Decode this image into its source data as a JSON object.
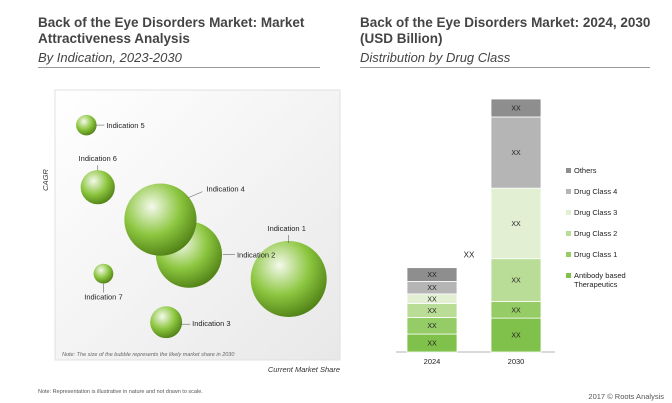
{
  "left": {
    "title": "Back of the Eye Disorders Market: Market Attractiveness Analysis",
    "subtitle": "By Indication, 2023-2030"
  },
  "right": {
    "title": "Back of the Eye Disorders Market: 2024, 2030 (USD Billion)",
    "subtitle": "Distribution by Drug Class"
  },
  "footnote": "Note: Representation is illustrative in nature and not drawn to scale.",
  "copyright": "2017 © Roots Analysis",
  "colors": {
    "bubble_light": "#f4f9ec",
    "bubble_mid": "#8cc63f",
    "bubble_dark": "#4f7f15"
  },
  "chart_data": [
    {
      "type": "scatter",
      "title": "",
      "xlabel": "Current Market Share",
      "ylabel": "CAGR",
      "grid": false,
      "note": "Note: The size of the bubble represents the likely market share in 2030",
      "points": [
        {
          "name": "Indication 1",
          "x": 0.82,
          "y": 0.3,
          "size": 1.0
        },
        {
          "name": "Indication 2",
          "x": 0.47,
          "y": 0.39,
          "size": 0.87
        },
        {
          "name": "Indication 3",
          "x": 0.39,
          "y": 0.14,
          "size": 0.42
        },
        {
          "name": "Indication 4",
          "x": 0.37,
          "y": 0.52,
          "size": 0.95
        },
        {
          "name": "Indication 5",
          "x": 0.11,
          "y": 0.87,
          "size": 0.27
        },
        {
          "name": "Indication 6",
          "x": 0.15,
          "y": 0.64,
          "size": 0.45
        },
        {
          "name": "Indication 7",
          "x": 0.17,
          "y": 0.32,
          "size": 0.26
        }
      ]
    },
    {
      "type": "bar",
      "stacked": true,
      "title": "",
      "categories": [
        "2024",
        "2030"
      ],
      "total_label": "XX",
      "legend_position": "right",
      "series": [
        {
          "name": "Antibody based Therapeutics",
          "color": "#7fc14a",
          "values": [
            2.6,
            4.9
          ],
          "labels": [
            "XX",
            "XX"
          ]
        },
        {
          "name": "Drug Class 1",
          "color": "#95cc66",
          "values": [
            2.4,
            2.4
          ],
          "labels": [
            "XX",
            "XX"
          ]
        },
        {
          "name": "Drug Class 2",
          "color": "#b9dd97",
          "values": [
            2.0,
            6.2
          ],
          "labels": [
            "XX",
            "XX"
          ]
        },
        {
          "name": "Drug Class 3",
          "color": "#e2efd3",
          "values": [
            1.4,
            10.2
          ],
          "labels": [
            "XX",
            "XX"
          ]
        },
        {
          "name": "Drug Class 4",
          "color": "#b5b5b5",
          "values": [
            1.8,
            10.3
          ],
          "labels": [
            "XX",
            "XX"
          ]
        },
        {
          "name": "Others",
          "color": "#8e8e8e",
          "values": [
            2.0,
            2.6
          ],
          "labels": [
            "XX",
            "XX"
          ]
        }
      ]
    }
  ]
}
